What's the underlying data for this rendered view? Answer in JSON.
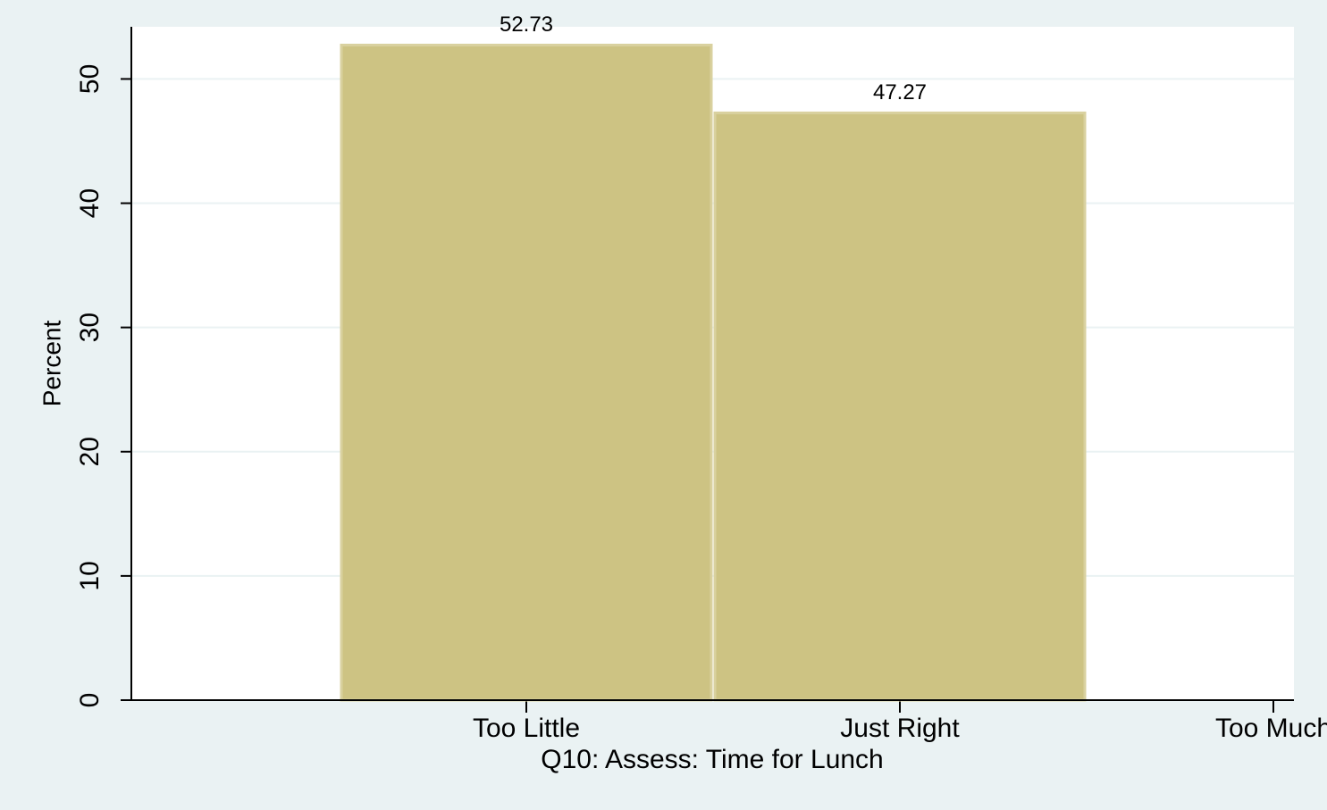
{
  "chart_data": {
    "type": "bar",
    "x_label": "Q10: Assess: Time for Lunch",
    "y_label": "Percent",
    "categories": [
      "Too Little",
      "Just Right",
      "Too Much"
    ],
    "values": [
      52.73,
      47.27,
      null
    ],
    "color": "#cdc383",
    "ylim": [
      0,
      54.2
    ],
    "yticks": [
      0,
      10,
      20,
      30,
      40,
      50
    ],
    "grid": true
  }
}
